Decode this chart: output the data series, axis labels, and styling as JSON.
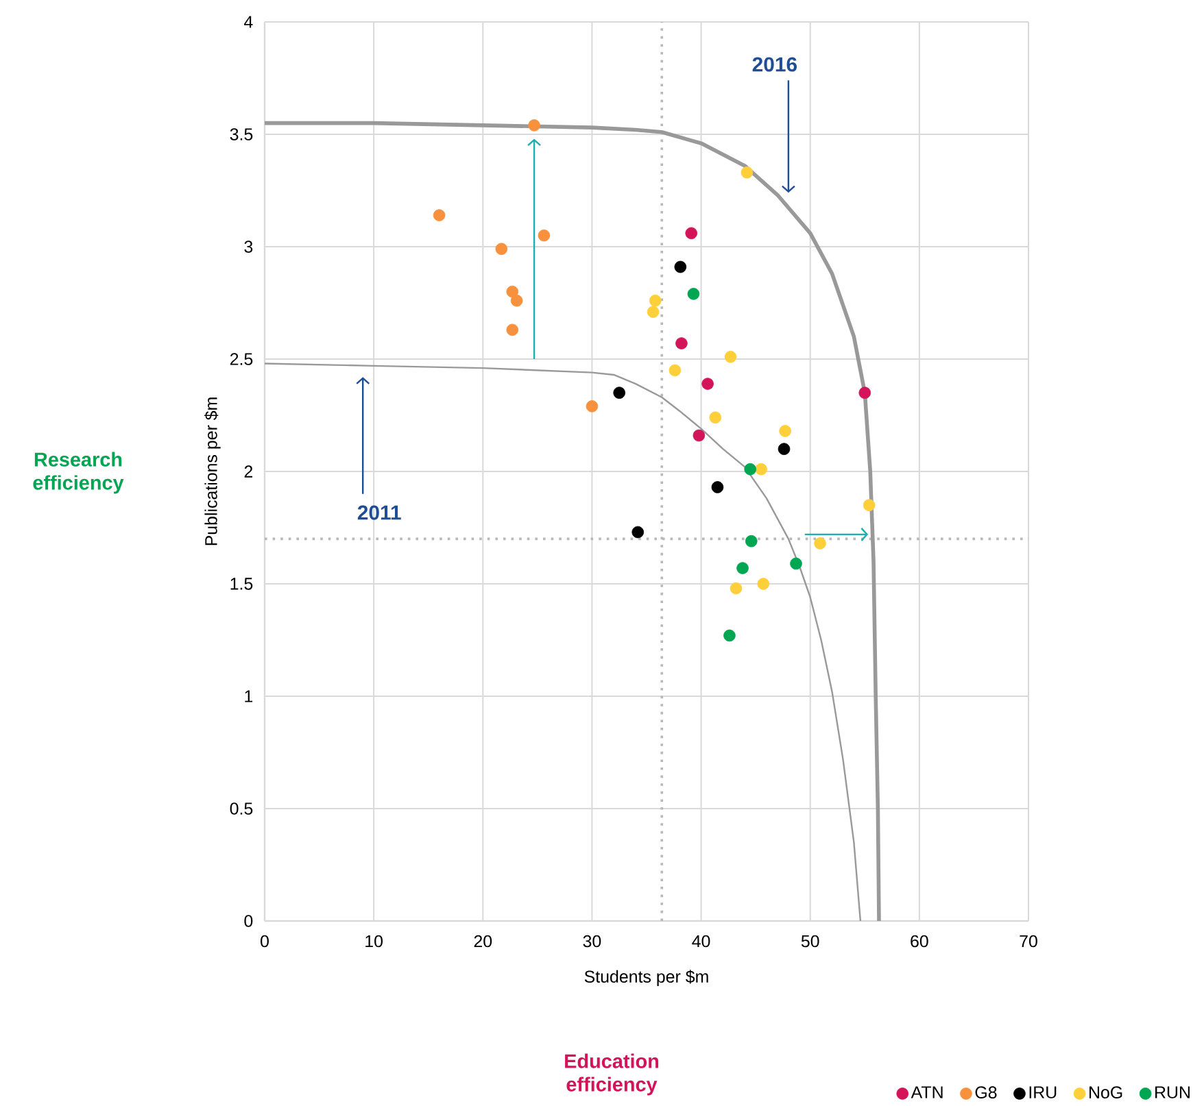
{
  "chart_data": {
    "type": "scatter",
    "xlabel": "Students per $m",
    "ylabel": "Publications per $m",
    "xlim": [
      0,
      70
    ],
    "ylim": [
      0,
      4
    ],
    "xticks": [
      0,
      10,
      20,
      30,
      40,
      50,
      60,
      70
    ],
    "yticks": [
      0,
      0.5,
      1,
      1.5,
      2,
      2.5,
      3,
      3.5,
      4
    ],
    "grid": true,
    "legend": "bottom",
    "series": [
      {
        "name": "ATN",
        "color": "#d4145a",
        "x": [
          39.1,
          38.2,
          40.6,
          39.8,
          55.0
        ],
        "values": [
          3.06,
          2.57,
          2.39,
          2.16,
          2.35
        ]
      },
      {
        "name": "G8",
        "color": "#f7913d",
        "x": [
          16.0,
          21.7,
          25.6,
          22.7,
          23.1,
          22.7,
          24.7,
          30.0
        ],
        "values": [
          3.14,
          2.99,
          3.05,
          2.8,
          2.76,
          2.63,
          3.54,
          2.29
        ]
      },
      {
        "name": "IRU",
        "color": "#000000",
        "x": [
          38.1,
          32.5,
          47.6,
          41.5,
          34.2
        ],
        "values": [
          2.91,
          2.35,
          2.1,
          1.93,
          1.73
        ]
      },
      {
        "name": "NoG",
        "color": "#fdd03b",
        "x": [
          44.2,
          35.8,
          35.6,
          37.6,
          42.7,
          41.3,
          47.7,
          45.5,
          55.4,
          50.9,
          45.7,
          43.2
        ],
        "values": [
          3.33,
          2.76,
          2.71,
          2.45,
          2.51,
          2.24,
          2.18,
          2.01,
          1.85,
          1.68,
          1.5,
          1.48
        ]
      },
      {
        "name": "RUN",
        "color": "#00a651",
        "x": [
          39.3,
          44.5,
          44.6,
          43.8,
          48.7,
          42.6
        ],
        "values": [
          2.79,
          2.01,
          1.69,
          1.57,
          1.59,
          1.27
        ]
      },
      {
        "type": "line",
        "color": "#999999",
        "x": [
          0,
          10,
          20,
          30,
          34,
          36.4,
          40,
          44,
          47,
          50,
          52,
          54,
          55,
          55.5,
          55.8,
          56,
          56.2,
          56.3
        ],
        "values": [
          3.55,
          3.55,
          3.54,
          3.53,
          3.52,
          3.51,
          3.46,
          3.36,
          3.23,
          3.06,
          2.88,
          2.6,
          2.35,
          2.0,
          1.6,
          1.0,
          0.5,
          0
        ]
      },
      {
        "type": "line",
        "color": "#999999",
        "x": [
          0,
          10,
          20,
          30,
          32,
          34,
          36.4,
          38,
          40,
          42,
          44,
          46,
          48,
          49,
          50,
          51,
          52,
          53,
          54,
          54.6
        ],
        "values": [
          2.48,
          2.47,
          2.46,
          2.44,
          2.43,
          2.39,
          2.33,
          2.27,
          2.19,
          2.1,
          2.02,
          1.88,
          1.7,
          1.58,
          1.44,
          1.25,
          1.02,
          0.72,
          0.35,
          0
        ]
      }
    ],
    "ref_lines": [
      {
        "axis": "x",
        "value": 36.4
      },
      {
        "axis": "y",
        "value": 1.7
      }
    ],
    "annotations": [
      "Research efficiency",
      "Education efficiency",
      "2016",
      "2011"
    ]
  }
}
